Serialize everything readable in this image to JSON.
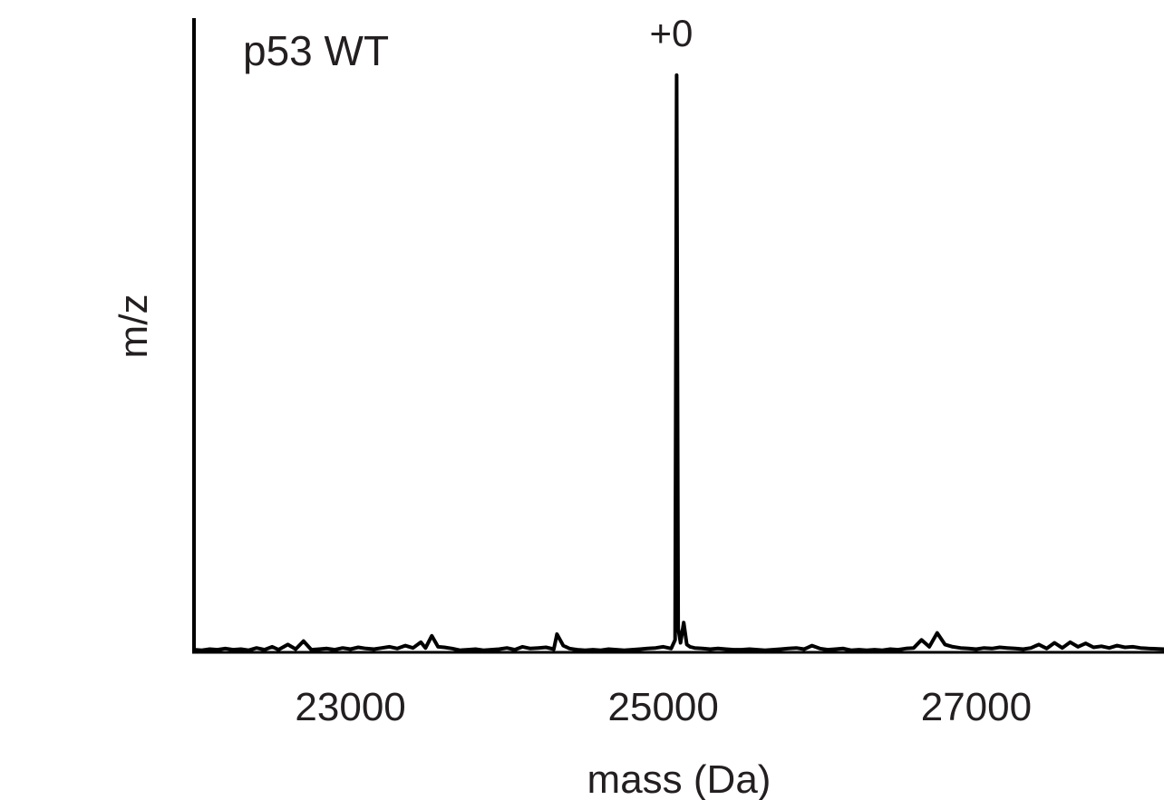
{
  "chart_data": {
    "type": "line",
    "title": "",
    "panel_label": "p53 WT",
    "xlabel": "mass (Da)",
    "ylabel": "m/z",
    "xlim": [
      22000,
      28200
    ],
    "ylim": [
      0,
      100
    ],
    "x_ticks": [
      23000,
      25000,
      27000
    ],
    "x_tick_labels": [
      "23000",
      "25000",
      "27000"
    ],
    "grid": false,
    "legend": "none",
    "line_color": "#000000",
    "annotations": [
      {
        "text": "+0",
        "x": 25085,
        "y": 100
      }
    ],
    "series": [
      {
        "x": [
          22000,
          22050,
          22100,
          22150,
          22200,
          22250,
          22300,
          22350,
          22400,
          22450,
          22500,
          22540,
          22600,
          22650,
          22700,
          22750,
          22800,
          22850,
          22900,
          22950,
          23000,
          23050,
          23100,
          23150,
          23200,
          23250,
          23300,
          23350,
          23400,
          23450,
          23480,
          23520,
          23560,
          23600,
          23650,
          23700,
          23750,
          23800,
          23850,
          23900,
          23950,
          24000,
          24050,
          24100,
          24150,
          24200,
          24250,
          24300,
          24320,
          24360,
          24400,
          24450,
          24500,
          24550,
          24600,
          24650,
          24700,
          24750,
          24800,
          24850,
          24900,
          24950,
          25000,
          25050,
          25075,
          25085,
          25095,
          25110,
          25130,
          25150,
          25170,
          25200,
          25250,
          25300,
          25350,
          25400,
          25450,
          25500,
          25550,
          25600,
          25650,
          25700,
          25750,
          25800,
          25850,
          25900,
          25950,
          26000,
          26050,
          26100,
          26150,
          26200,
          26250,
          26300,
          26350,
          26400,
          26450,
          26500,
          26550,
          26600,
          26650,
          26700,
          26750,
          26800,
          26850,
          26900,
          26950,
          27000,
          27050,
          27100,
          27150,
          27200,
          27250,
          27300,
          27350,
          27400,
          27450,
          27500,
          27550,
          27600,
          27650,
          27700,
          27750,
          27800,
          27850,
          27900,
          27950,
          28000,
          28050,
          28100,
          28200
        ],
        "y": [
          0.3,
          0.2,
          0.4,
          0.3,
          0.5,
          0.3,
          0.4,
          0.2,
          0.6,
          0.3,
          0.8,
          0.3,
          1.2,
          0.4,
          1.8,
          0.3,
          0.4,
          0.5,
          0.3,
          0.6,
          0.4,
          0.7,
          0.5,
          0.4,
          0.6,
          0.8,
          0.5,
          1.0,
          0.6,
          1.6,
          0.6,
          2.7,
          0.8,
          0.7,
          0.5,
          0.2,
          0.3,
          0.4,
          0.2,
          0.3,
          0.4,
          0.6,
          0.3,
          0.8,
          0.5,
          0.6,
          0.7,
          0.4,
          3.0,
          1.0,
          0.5,
          0.3,
          0.2,
          0.3,
          0.2,
          0.4,
          0.3,
          0.2,
          0.3,
          0.4,
          0.5,
          0.6,
          0.8,
          0.5,
          2.0,
          100,
          4.0,
          1.5,
          5.0,
          1.2,
          0.8,
          0.6,
          0.5,
          0.4,
          0.5,
          0.4,
          0.3,
          0.3,
          0.4,
          0.3,
          0.2,
          0.3,
          0.4,
          0.5,
          0.6,
          0.4,
          1.0,
          0.5,
          0.3,
          0.4,
          0.5,
          0.2,
          0.3,
          0.2,
          0.3,
          0.2,
          0.4,
          0.3,
          0.5,
          0.6,
          2.0,
          0.8,
          3.2,
          1.2,
          0.8,
          0.6,
          0.5,
          0.4,
          0.6,
          0.5,
          0.7,
          0.6,
          0.5,
          0.4,
          0.6,
          1.2,
          0.5,
          1.5,
          0.6,
          1.6,
          0.8,
          1.4,
          0.7,
          0.9,
          0.6,
          1.0,
          0.7,
          0.8,
          0.6,
          0.5,
          0.4
        ]
      }
    ]
  }
}
